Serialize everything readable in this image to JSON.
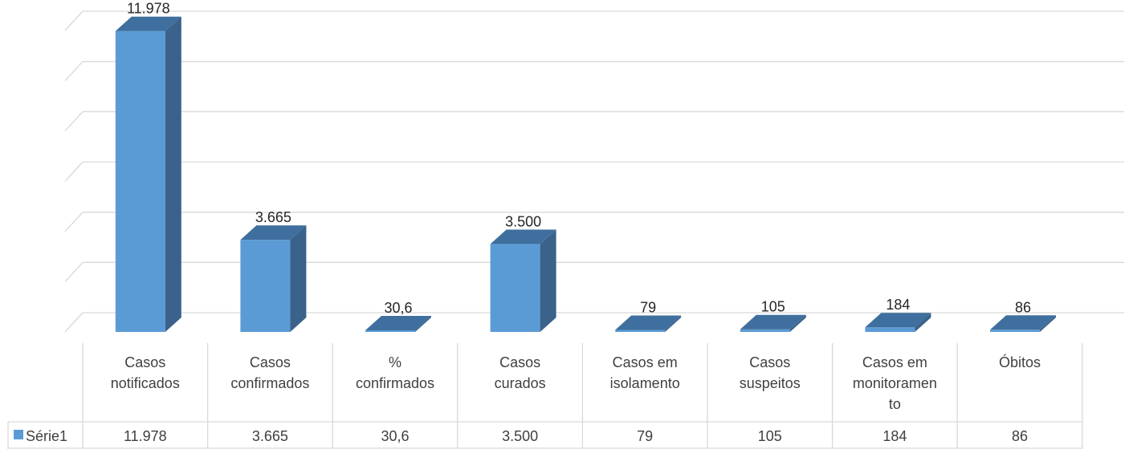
{
  "chart_data": {
    "type": "bar",
    "style": "3d-column-with-data-table",
    "categories": [
      [
        "Casos",
        "notificados"
      ],
      [
        "Casos",
        "confirmados"
      ],
      [
        "%",
        "confirmados"
      ],
      [
        "Casos",
        "curados"
      ],
      [
        "Casos em",
        "isolamento"
      ],
      [
        "Casos",
        "suspeitos"
      ],
      [
        "Casos em",
        "monitoramen",
        "to"
      ],
      [
        "Óbitos"
      ]
    ],
    "series": [
      {
        "name": "Série1",
        "values": [
          11978,
          3665,
          30.6,
          3500,
          79,
          105,
          184,
          86
        ],
        "labels": [
          "11.978",
          "3.665",
          "30,6",
          "3.500",
          "79",
          "105",
          "184",
          "86"
        ]
      }
    ],
    "ylim": [
      0,
      12000
    ],
    "ytick_step": 2000,
    "grid": true,
    "legend": "data-table",
    "colors": {
      "front": "#5B9BD5",
      "side": "#3A628A",
      "top": "#3F6F9E",
      "grid": "#D9D9D9",
      "table": "#D9D9D9"
    }
  }
}
